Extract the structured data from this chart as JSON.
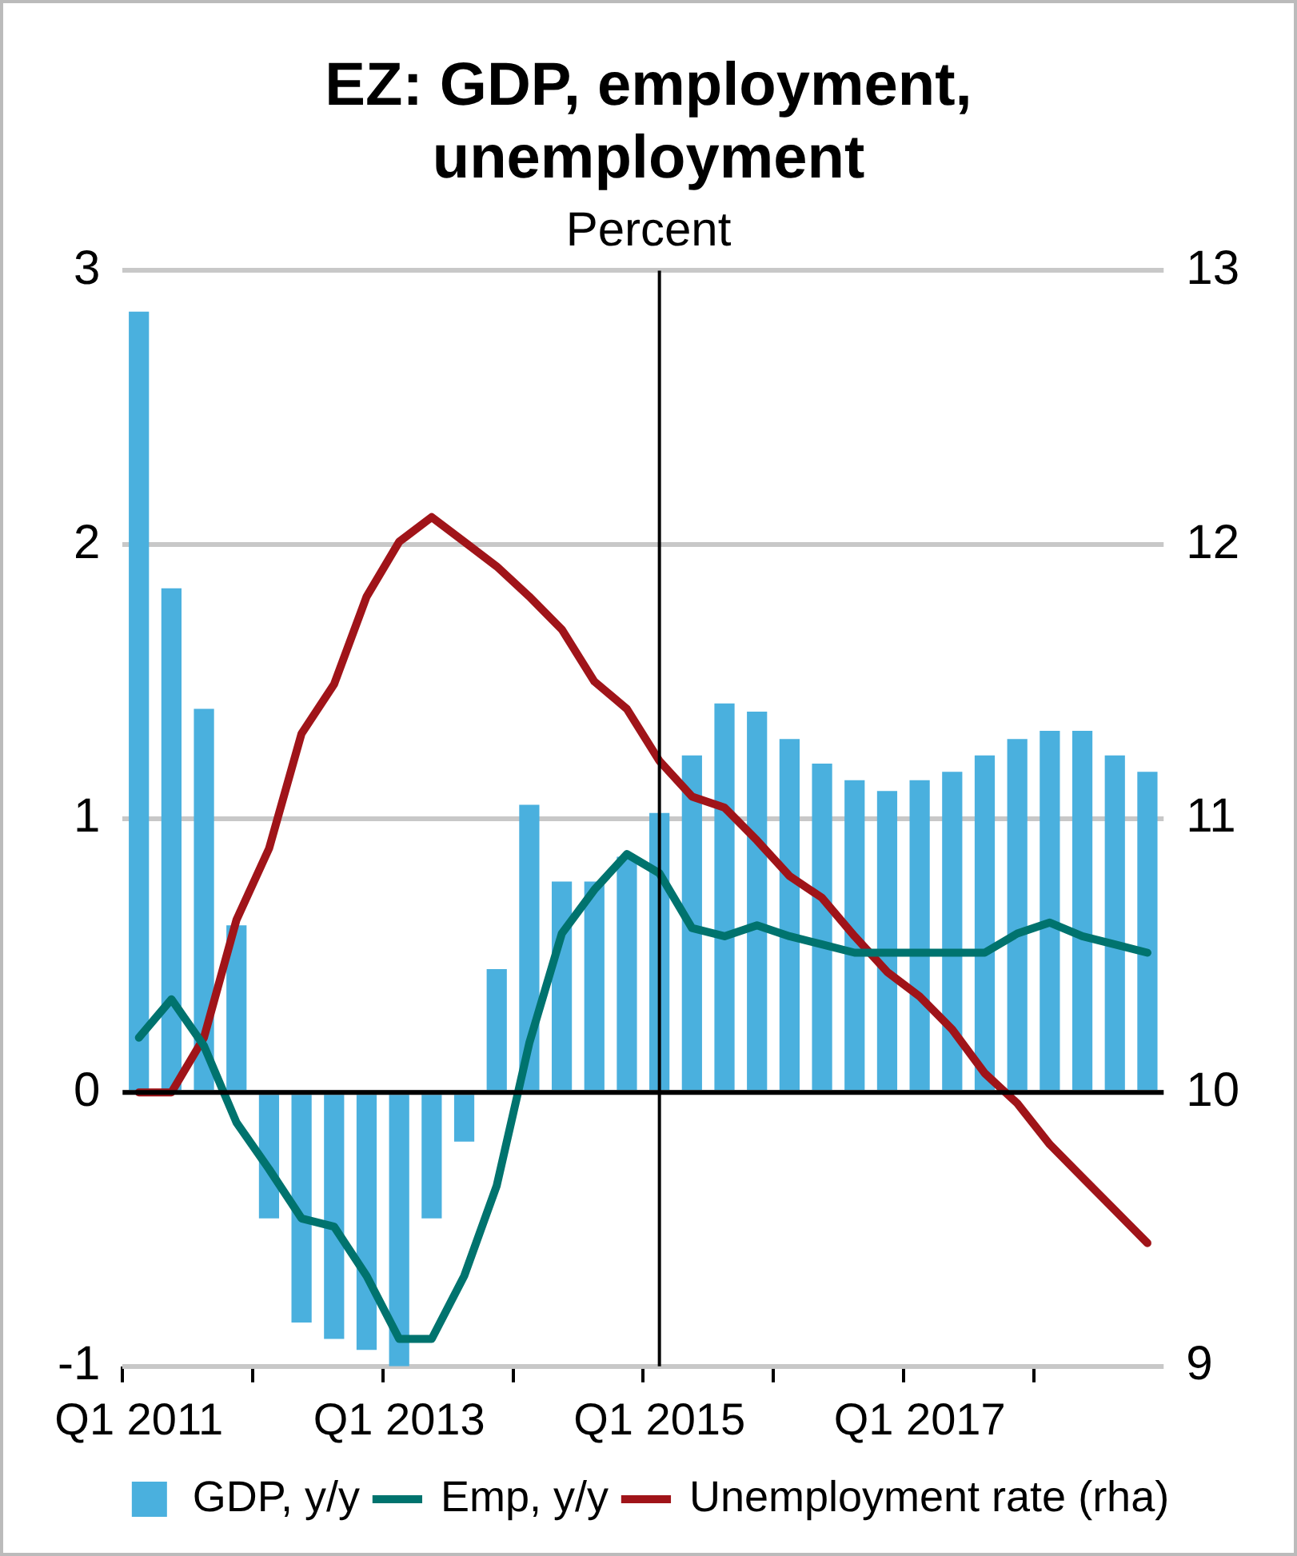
{
  "chart_data": {
    "type": "bar",
    "title": "EZ: GDP, employment, unemployment",
    "subtitle": "Percent",
    "categories": [
      "Q1 2011",
      null,
      null,
      null,
      null,
      null,
      null,
      null,
      "Q1 2013",
      null,
      null,
      null,
      null,
      null,
      null,
      null,
      "Q1 2015",
      null,
      null,
      null,
      null,
      null,
      null,
      null,
      "Q1 2017",
      null,
      null,
      null,
      null,
      null,
      null,
      null
    ],
    "series": [
      {
        "name": "GDP, y/y",
        "color": "#4ab0de",
        "values": [
          2.85,
          1.84,
          1.4,
          0.61,
          -0.46,
          -0.84,
          -0.9,
          -0.94,
          -1.0,
          -0.46,
          -0.18,
          0.45,
          1.05,
          0.77,
          0.77,
          0.86,
          1.02,
          1.23,
          1.42,
          1.39,
          1.29,
          1.2,
          1.14,
          1.1,
          1.14,
          1.17,
          1.23,
          1.29,
          1.32,
          1.32,
          1.23,
          1.17
        ]
      },
      {
        "name": "Emp, y/y",
        "type": "line",
        "color": "#00736e",
        "values": [
          0.2,
          0.34,
          0.17,
          -0.11,
          -0.28,
          -0.46,
          -0.49,
          -0.67,
          -0.9,
          -0.9,
          -0.67,
          -0.34,
          0.18,
          0.58,
          0.74,
          0.87,
          0.8,
          0.6,
          0.57,
          0.61,
          0.57,
          0.54,
          0.51,
          0.51,
          0.51,
          0.51,
          0.51,
          0.58,
          0.62,
          0.57,
          0.54,
          0.51
        ]
      },
      {
        "name": "Unemployment rate (rha)",
        "type": "line",
        "axis": "y2",
        "color": "#a01419",
        "values": [
          10.0,
          10.0,
          10.2,
          10.63,
          10.89,
          11.31,
          11.49,
          11.81,
          12.01,
          12.1,
          12.01,
          11.92,
          11.81,
          11.69,
          11.5,
          11.4,
          11.21,
          11.08,
          11.04,
          10.92,
          10.79,
          10.71,
          10.57,
          10.44,
          10.35,
          10.23,
          10.07,
          9.96,
          9.81,
          9.69,
          9.57,
          9.45
        ]
      }
    ],
    "ylim": [
      -1,
      3
    ],
    "yticks": [
      -1,
      0,
      1,
      2,
      3
    ],
    "y2lim": [
      9,
      13
    ],
    "y2ticks": [
      9,
      10,
      11,
      12,
      13
    ],
    "ref_lines": [
      {
        "axis": "x",
        "value": "Q1 2015",
        "color": "#000000"
      }
    ],
    "grid": "y",
    "legend": "bottom",
    "marker": "none",
    "line_style": "solid"
  }
}
